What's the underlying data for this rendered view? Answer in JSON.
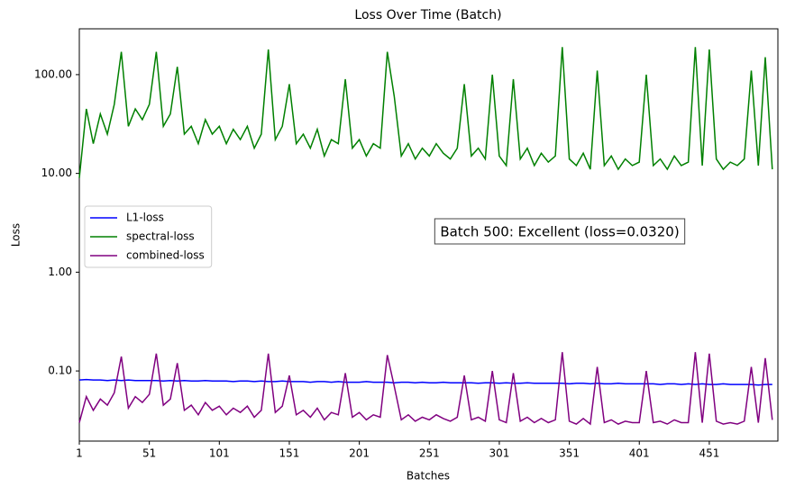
{
  "chart_data": {
    "type": "line",
    "title": "Loss Over Time (Batch)",
    "x_label": "Batches",
    "y_label": "Loss",
    "log_scale": true,
    "legend": "center left",
    "annotation": "Batch 500: Excellent (loss=0.0320)",
    "xlim": [
      1,
      500
    ],
    "xticks": [
      1,
      51,
      101,
      151,
      201,
      251,
      301,
      351,
      401,
      451
    ],
    "ylim": [
      0.0195,
      291
    ],
    "yticks": [
      {
        "value": 0.1,
        "label": "0.10"
      },
      {
        "value": 1,
        "label": "1.00"
      },
      {
        "value": 10,
        "label": "10.00"
      },
      {
        "value": 100,
        "label": "100.00"
      }
    ],
    "x": [
      1,
      6,
      11,
      16,
      21,
      26,
      31,
      36,
      41,
      46,
      51,
      56,
      61,
      66,
      71,
      76,
      81,
      86,
      91,
      96,
      101,
      106,
      111,
      116,
      121,
      126,
      131,
      136,
      141,
      146,
      151,
      156,
      161,
      166,
      171,
      176,
      181,
      186,
      191,
      196,
      201,
      206,
      211,
      216,
      221,
      226,
      231,
      236,
      241,
      246,
      251,
      256,
      261,
      266,
      271,
      276,
      281,
      286,
      291,
      296,
      301,
      306,
      311,
      316,
      321,
      326,
      331,
      336,
      341,
      346,
      351,
      356,
      361,
      366,
      371,
      376,
      381,
      386,
      391,
      396,
      401,
      406,
      411,
      416,
      421,
      426,
      431,
      436,
      441,
      446,
      451,
      456,
      461,
      466,
      471,
      476,
      481,
      486,
      491,
      496
    ],
    "series": [
      {
        "name": "L1-loss",
        "color": "#0000ff",
        "values": [
          0.081,
          0.082,
          0.081,
          0.081,
          0.08,
          0.081,
          0.08,
          0.081,
          0.08,
          0.08,
          0.08,
          0.08,
          0.079,
          0.08,
          0.079,
          0.08,
          0.079,
          0.079,
          0.08,
          0.079,
          0.079,
          0.079,
          0.078,
          0.079,
          0.079,
          0.078,
          0.079,
          0.078,
          0.078,
          0.079,
          0.078,
          0.078,
          0.078,
          0.077,
          0.078,
          0.078,
          0.077,
          0.078,
          0.077,
          0.077,
          0.077,
          0.078,
          0.077,
          0.077,
          0.077,
          0.076,
          0.077,
          0.077,
          0.076,
          0.077,
          0.076,
          0.076,
          0.077,
          0.076,
          0.076,
          0.076,
          0.076,
          0.075,
          0.076,
          0.076,
          0.075,
          0.076,
          0.075,
          0.075,
          0.076,
          0.075,
          0.075,
          0.075,
          0.075,
          0.075,
          0.074,
          0.075,
          0.075,
          0.074,
          0.075,
          0.074,
          0.074,
          0.075,
          0.074,
          0.074,
          0.074,
          0.074,
          0.074,
          0.073,
          0.074,
          0.074,
          0.073,
          0.074,
          0.073,
          0.074,
          0.073,
          0.073,
          0.074,
          0.073,
          0.073,
          0.073,
          0.073,
          0.072,
          0.073,
          0.073
        ]
      },
      {
        "name": "spectral-loss",
        "color": "#008000",
        "values": [
          9,
          45,
          20,
          40,
          25,
          50,
          170,
          30,
          45,
          35,
          50,
          170,
          30,
          40,
          120,
          25,
          30,
          20,
          35,
          25,
          30,
          20,
          28,
          22,
          30,
          18,
          25,
          180,
          22,
          30,
          80,
          20,
          25,
          18,
          28,
          15,
          22,
          20,
          90,
          18,
          22,
          15,
          20,
          18,
          170,
          60,
          15,
          20,
          14,
          18,
          15,
          20,
          16,
          14,
          18,
          80,
          15,
          18,
          14,
          100,
          15,
          12,
          90,
          14,
          18,
          12,
          16,
          13,
          15,
          190,
          14,
          12,
          16,
          11,
          110,
          12,
          15,
          11,
          14,
          12,
          13,
          100,
          12,
          14,
          11,
          15,
          12,
          13,
          190,
          12,
          180,
          14,
          11,
          13,
          12,
          14,
          110,
          12,
          150,
          11
        ]
      },
      {
        "name": "combined-loss",
        "color": "#800080",
        "values": [
          0.03,
          0.055,
          0.04,
          0.052,
          0.045,
          0.06,
          0.14,
          0.042,
          0.055,
          0.048,
          0.058,
          0.15,
          0.045,
          0.052,
          0.12,
          0.04,
          0.045,
          0.036,
          0.048,
          0.04,
          0.044,
          0.036,
          0.042,
          0.038,
          0.044,
          0.034,
          0.04,
          0.15,
          0.038,
          0.044,
          0.09,
          0.036,
          0.04,
          0.034,
          0.042,
          0.032,
          0.038,
          0.036,
          0.095,
          0.034,
          0.038,
          0.032,
          0.036,
          0.034,
          0.145,
          0.07,
          0.032,
          0.036,
          0.031,
          0.034,
          0.032,
          0.036,
          0.033,
          0.031,
          0.034,
          0.09,
          0.032,
          0.034,
          0.031,
          0.1,
          0.032,
          0.03,
          0.095,
          0.031,
          0.034,
          0.03,
          0.033,
          0.03,
          0.032,
          0.155,
          0.031,
          0.029,
          0.033,
          0.029,
          0.11,
          0.03,
          0.032,
          0.029,
          0.031,
          0.03,
          0.03,
          0.1,
          0.03,
          0.031,
          0.029,
          0.032,
          0.03,
          0.03,
          0.155,
          0.03,
          0.15,
          0.031,
          0.029,
          0.03,
          0.029,
          0.031,
          0.11,
          0.03,
          0.135,
          0.032
        ]
      }
    ]
  }
}
